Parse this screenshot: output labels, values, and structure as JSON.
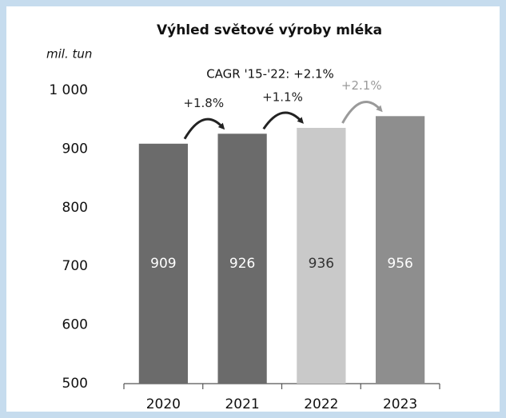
{
  "chart_data": {
    "type": "bar",
    "title": "Výhled světové výroby mléka",
    "y_label": "mil. tun",
    "subtitle": "CAGR '15-'22: +2.1%",
    "categories": [
      "2020",
      "2021",
      "2022",
      "2023"
    ],
    "values": [
      909,
      926,
      936,
      956
    ],
    "colors": [
      "#6b6b6b",
      "#6b6b6b",
      "#c9c9c9",
      "#8e8e8e"
    ],
    "value_label_colors": [
      "#ffffff",
      "#ffffff",
      "#333333",
      "#ffffff"
    ],
    "annotations": [
      "+1.8%",
      "+1.1%",
      "+2.1%"
    ],
    "annotation_colors": [
      "#222222",
      "#222222",
      "#9a9a9a"
    ],
    "ylim": [
      500,
      1000
    ],
    "yticks": [
      500,
      600,
      700,
      800,
      900,
      {
        "value": 1000,
        "label": "1 000"
      }
    ],
    "grid": false
  }
}
